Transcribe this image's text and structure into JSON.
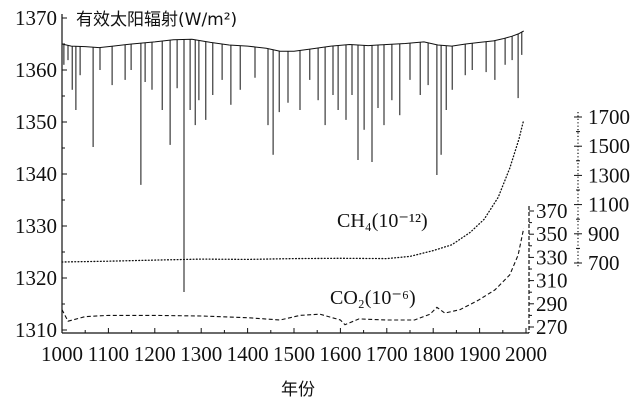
{
  "chart_data": {
    "type": "line",
    "xlabel": "年份",
    "xlim": [
      1000,
      2000
    ],
    "xticks": [
      1000,
      1100,
      1200,
      1300,
      1400,
      1500,
      1600,
      1700,
      1800,
      1900,
      2000
    ],
    "grid": false,
    "series": [
      {
        "name": "有效太阳辐射(W/m²)",
        "ylim": [
          1310,
          1370
        ],
        "yticks": [
          1310,
          1320,
          1330,
          1340,
          1350,
          1360,
          1370
        ],
        "x": [
          1000,
          1020,
          1050,
          1080,
          1110,
          1150,
          1200,
          1240,
          1280,
          1320,
          1360,
          1400,
          1440,
          1470,
          1500,
          1540,
          1580,
          1620,
          1660,
          1700,
          1740,
          1780,
          1810,
          1840,
          1870,
          1900,
          1930,
          1950,
          1970,
          1985,
          1995
        ],
        "y": [
          1365.0,
          1364.6,
          1364.5,
          1364.3,
          1364.6,
          1365.0,
          1365.4,
          1365.8,
          1365.9,
          1365.3,
          1364.8,
          1364.6,
          1364.2,
          1363.6,
          1363.6,
          1364.1,
          1364.6,
          1364.9,
          1364.7,
          1364.9,
          1365.1,
          1365.4,
          1364.8,
          1364.6,
          1365.0,
          1365.3,
          1365.6,
          1366.0,
          1366.5,
          1367.0,
          1367.5
        ],
        "dips": {
          "x": [
            1004,
            1013,
            1022,
            1030,
            1039,
            1067,
            1082,
            1108,
            1136,
            1149,
            1170,
            1179,
            1194,
            1216,
            1233,
            1248,
            1263,
            1276,
            1287,
            1295,
            1310,
            1325,
            1345,
            1364,
            1384,
            1416,
            1444,
            1455,
            1468,
            1487,
            1513,
            1534,
            1552,
            1567,
            1584,
            1595,
            1612,
            1625,
            1638,
            1651,
            1668,
            1681,
            1694,
            1711,
            1728,
            1750,
            1772,
            1789,
            1808,
            1817,
            1828,
            1841,
            1869,
            1884,
            1914,
            1933,
            1955,
            1970,
            1983,
            1991
          ],
          "y": [
            1361.0,
            1361.9,
            1356.2,
            1352.3,
            1359.0,
            1345.2,
            1360.0,
            1357.1,
            1358.1,
            1360.0,
            1337.9,
            1357.7,
            1356.2,
            1352.3,
            1345.6,
            1356.5,
            1317.3,
            1352.3,
            1349.4,
            1354.2,
            1350.4,
            1355.2,
            1358.1,
            1353.3,
            1356.2,
            1358.5,
            1349.4,
            1343.7,
            1351.9,
            1353.7,
            1352.3,
            1358.1,
            1354.2,
            1349.4,
            1355.2,
            1352.3,
            1350.4,
            1355.2,
            1342.7,
            1348.5,
            1342.3,
            1352.7,
            1349.4,
            1354.2,
            1351.3,
            1358.1,
            1355.2,
            1357.1,
            1339.8,
            1343.7,
            1352.3,
            1356.2,
            1359.0,
            1360.0,
            1359.6,
            1358.1,
            1361.0,
            1361.9,
            1354.6,
            1362.9
          ]
        }
      },
      {
        "name": "CH₄(10⁻¹²)",
        "ylim": [
          700,
          1700
        ],
        "yticks": [
          700,
          900,
          1100,
          1300,
          1500,
          1700
        ],
        "x": [
          1000,
          1100,
          1200,
          1300,
          1400,
          1500,
          1600,
          1700,
          1750,
          1800,
          1840,
          1880,
          1910,
          1940,
          1965,
          1985,
          1995
        ],
        "y": [
          707,
          712,
          720,
          727,
          725,
          730,
          732,
          730,
          745,
          785,
          825,
          910,
          1000,
          1150,
          1350,
          1550,
          1680
        ]
      },
      {
        "name": "CO₂(10⁻⁶)",
        "ylim": [
          270,
          370
        ],
        "yticks": [
          270,
          290,
          310,
          330,
          350,
          370
        ],
        "x": [
          1000,
          1013,
          1050,
          1100,
          1200,
          1300,
          1400,
          1470,
          1513,
          1556,
          1600,
          1610,
          1640,
          1700,
          1760,
          1793,
          1808,
          1825,
          1858,
          1897,
          1933,
          1965,
          1983,
          1995
        ],
        "y": [
          285,
          275,
          279,
          280,
          280,
          279.5,
          278,
          276,
          280,
          281,
          276,
          272,
          277,
          276,
          276,
          281,
          287,
          282,
          285,
          293,
          302,
          315,
          332,
          355
        ]
      }
    ]
  }
}
